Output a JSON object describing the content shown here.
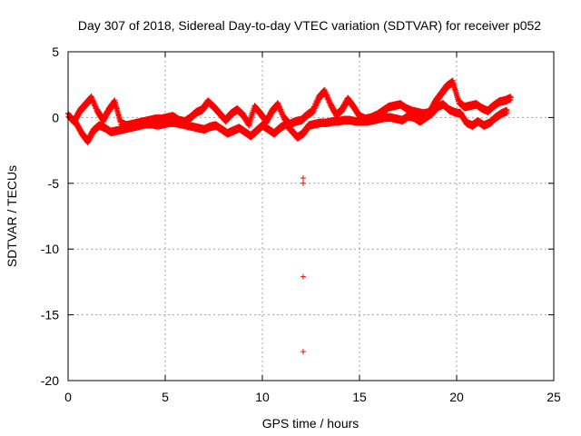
{
  "chart_data": {
    "type": "scatter",
    "title": "Day 307 of 2018, Sidereal Day-to-day VTEC variation (SDTVAR) for receiver p052",
    "xlabel": "GPS time / hours",
    "ylabel": "SDTVAR / TECUs",
    "xlim": [
      0,
      25
    ],
    "ylim": [
      -20,
      5
    ],
    "xticks": [
      0,
      5,
      10,
      15,
      20,
      25
    ],
    "yticks": [
      5,
      0,
      -5,
      -10,
      -15,
      -20
    ],
    "grid": true,
    "marker": "+",
    "colors": {
      "series": "#ff0000",
      "grid": "#a0a0a0",
      "axis": "#000000"
    },
    "series": [
      {
        "name": "SDTVAR",
        "band_a": {
          "x": [
            0.0,
            0.3,
            0.6,
            0.9,
            1.2,
            1.5,
            1.8,
            2.1,
            2.4,
            2.7,
            3.0,
            3.3,
            3.6,
            3.9,
            4.2,
            4.5,
            4.8,
            5.1,
            5.4,
            5.7,
            6.0,
            6.3,
            6.6,
            6.9,
            7.2,
            7.5,
            7.8,
            8.1,
            8.4,
            8.7,
            9.0,
            9.3,
            9.6,
            9.9,
            10.2,
            10.5,
            10.8,
            11.1,
            11.4,
            11.7,
            12.0,
            12.3,
            12.6,
            12.9,
            13.2,
            13.5,
            13.8,
            14.1,
            14.4,
            14.7,
            15.0,
            15.3,
            15.6,
            15.9,
            16.2,
            16.5,
            16.8,
            17.1,
            17.4,
            17.7,
            18.0,
            18.3,
            18.6,
            18.9,
            19.2,
            19.5,
            19.8,
            20.1,
            20.4,
            20.7,
            21.0,
            21.3,
            21.6,
            21.9,
            22.2,
            22.5,
            22.8
          ],
          "y": [
            0.2,
            -0.3,
            0.5,
            1.0,
            1.5,
            0.5,
            -0.2,
            0.6,
            1.2,
            -0.4,
            -0.6,
            -0.5,
            -0.4,
            -0.3,
            -0.2,
            -0.1,
            -0.1,
            0.0,
            0.1,
            -0.2,
            -0.3,
            0.0,
            0.4,
            0.6,
            1.2,
            0.8,
            0.3,
            -0.2,
            0.3,
            0.6,
            0.2,
            -0.5,
            0.8,
            0.3,
            -0.3,
            0.5,
            1.0,
            0.0,
            -0.5,
            -0.3,
            -0.2,
            0.2,
            0.5,
            1.5,
            2.0,
            1.0,
            0.2,
            0.6,
            1.4,
            0.8,
            0.1,
            -0.1,
            0.0,
            0.2,
            0.5,
            0.8,
            0.9,
            1.0,
            0.7,
            0.5,
            0.4,
            0.3,
            0.4,
            1.2,
            1.8,
            2.4,
            2.7,
            1.2,
            0.8,
            0.9,
            1.0,
            0.7,
            0.5,
            0.9,
            1.2,
            1.3,
            1.5
          ]
        },
        "band_b": {
          "x": [
            0.1,
            0.4,
            0.7,
            1.0,
            1.3,
            1.6,
            1.9,
            2.2,
            2.5,
            2.8,
            3.1,
            3.4,
            3.7,
            4.0,
            4.3,
            4.6,
            4.9,
            5.2,
            5.5,
            5.8,
            6.1,
            6.4,
            6.7,
            7.0,
            7.3,
            7.6,
            7.9,
            8.2,
            8.5,
            8.8,
            9.1,
            9.4,
            9.7,
            10.0,
            10.3,
            10.6,
            10.9,
            11.2,
            11.5,
            11.8,
            12.1,
            12.4,
            12.7,
            13.0,
            13.3,
            13.6,
            13.9,
            14.2,
            14.5,
            14.8,
            15.1,
            15.4,
            15.7,
            16.0,
            16.3,
            16.6,
            16.9,
            17.2,
            17.5,
            17.8,
            18.1,
            18.4,
            18.7,
            19.0,
            19.3,
            19.6,
            19.9,
            20.2,
            20.5,
            20.8,
            21.1,
            21.4,
            21.7,
            22.0,
            22.3,
            22.6
          ],
          "y": [
            0.0,
            -0.4,
            -1.2,
            -1.8,
            -1.0,
            -0.6,
            -0.8,
            -1.1,
            -1.0,
            -0.9,
            -0.8,
            -0.7,
            -0.6,
            -0.5,
            -0.5,
            -0.6,
            -0.5,
            -0.4,
            -0.4,
            -0.5,
            -0.6,
            -0.7,
            -0.8,
            -0.9,
            -0.7,
            -0.6,
            -0.9,
            -1.2,
            -1.0,
            -0.8,
            -1.1,
            -1.4,
            -1.0,
            -0.6,
            -0.9,
            -1.2,
            -0.8,
            -0.5,
            -1.0,
            -1.5,
            -1.2,
            -0.6,
            -0.5,
            -0.4,
            -0.4,
            -0.3,
            -0.3,
            -0.2,
            -0.2,
            -0.3,
            -0.3,
            -0.3,
            -0.2,
            -0.1,
            0.0,
            0.0,
            -0.1,
            -0.2,
            0.1,
            0.0,
            -0.3,
            0.0,
            0.3,
            0.8,
            1.0,
            0.6,
            0.4,
            0.3,
            -0.4,
            -0.6,
            -0.3,
            -0.6,
            -0.4,
            0.0,
            0.3,
            0.5
          ]
        },
        "outliers": {
          "x": [
            12.1,
            12.1,
            12.1,
            12.1
          ],
          "y": [
            -4.6,
            -5.0,
            -12.1,
            -17.8
          ]
        }
      }
    ]
  }
}
